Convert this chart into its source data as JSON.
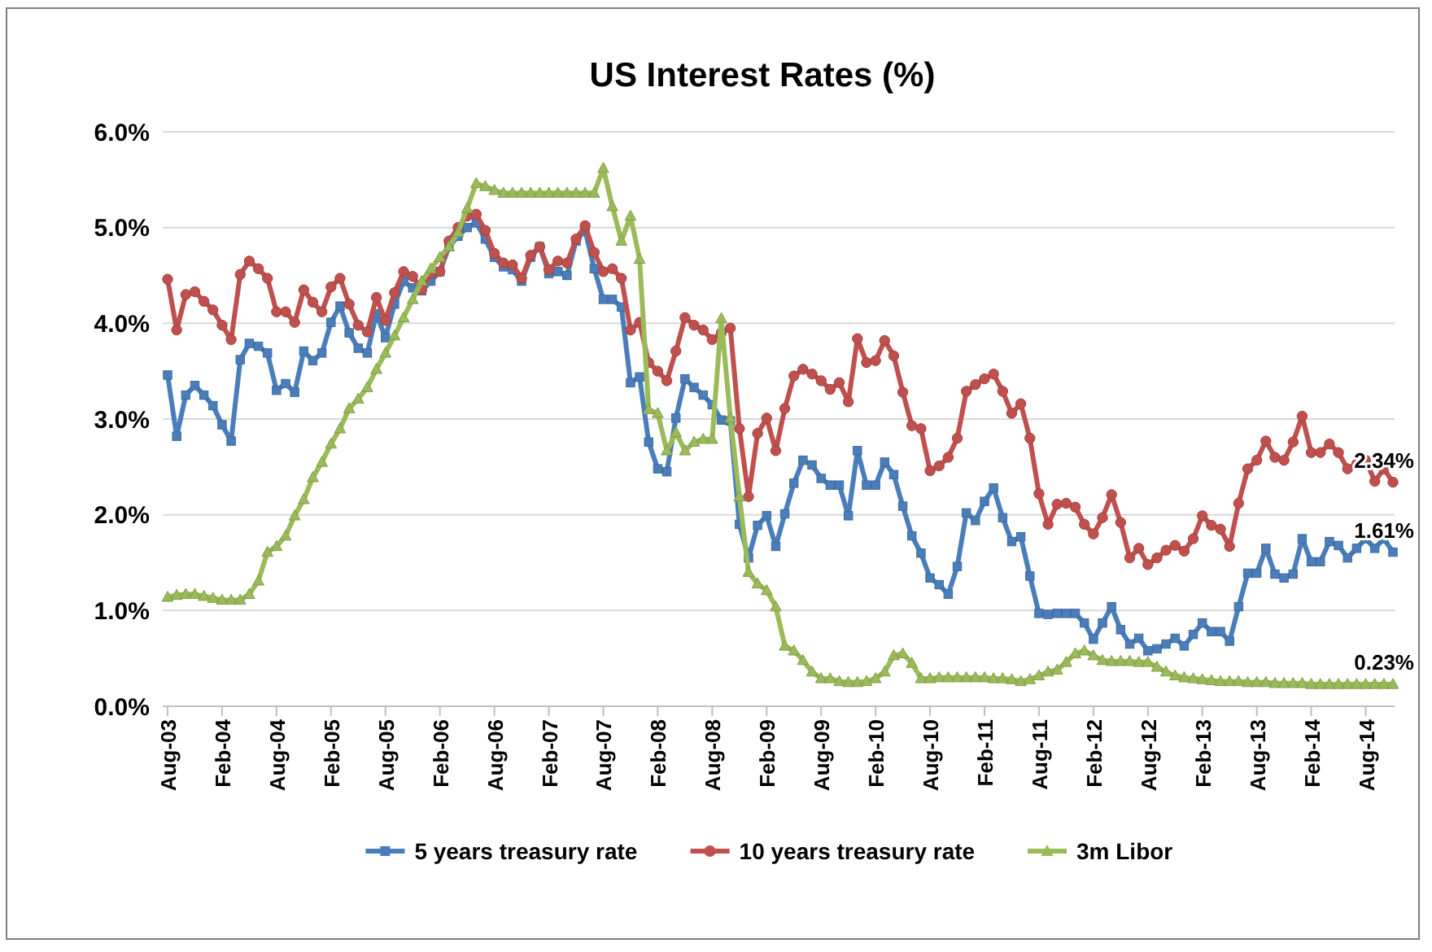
{
  "chart_data": {
    "type": "line",
    "title": "US Interest Rates (%)",
    "categories": [
      "Aug-03",
      null,
      null,
      null,
      null,
      null,
      "Feb-04",
      null,
      null,
      null,
      null,
      null,
      "Aug-04",
      null,
      null,
      null,
      null,
      null,
      "Feb-05",
      null,
      null,
      null,
      null,
      null,
      "Aug-05",
      null,
      null,
      null,
      null,
      null,
      "Feb-06",
      null,
      null,
      null,
      null,
      null,
      "Aug-06",
      null,
      null,
      null,
      null,
      null,
      "Feb-07",
      null,
      null,
      null,
      null,
      null,
      "Aug-07",
      null,
      null,
      null,
      null,
      null,
      "Feb-08",
      null,
      null,
      null,
      null,
      null,
      "Aug-08",
      null,
      null,
      null,
      null,
      null,
      "Feb-09",
      null,
      null,
      null,
      null,
      null,
      "Aug-09",
      null,
      null,
      null,
      null,
      null,
      "Feb-10",
      null,
      null,
      null,
      null,
      null,
      "Aug-10",
      null,
      null,
      null,
      null,
      null,
      "Feb-11",
      null,
      null,
      null,
      null,
      null,
      "Aug-11",
      null,
      null,
      null,
      null,
      null,
      "Feb-12",
      null,
      null,
      null,
      null,
      null,
      "Aug-12",
      null,
      null,
      null,
      null,
      null,
      "Feb-13",
      null,
      null,
      null,
      null,
      null,
      "Aug-13",
      null,
      null,
      null,
      null,
      null,
      "Feb-14",
      null,
      null,
      null,
      null,
      null,
      "Aug-14",
      null,
      null,
      null
    ],
    "ylim": [
      0,
      6
    ],
    "yticks": [
      {
        "value": 0,
        "label": "0.0%"
      },
      {
        "value": 1,
        "label": "1.0%"
      },
      {
        "value": 2,
        "label": "2.0%"
      },
      {
        "value": 3,
        "label": "3.0%"
      },
      {
        "value": 4,
        "label": "4.0%"
      },
      {
        "value": 5,
        "label": "5.0%"
      },
      {
        "value": 6,
        "label": "6.0%"
      }
    ],
    "grid": "y",
    "legend": "bottom",
    "series": [
      {
        "name": "5 years treasury rate",
        "color": "#4a7ebb",
        "marker": "square",
        "values": [
          3.46,
          2.82,
          3.25,
          3.35,
          3.25,
          3.14,
          2.94,
          2.77,
          3.62,
          3.79,
          3.76,
          3.69,
          3.3,
          3.37,
          3.28,
          3.71,
          3.61,
          3.69,
          4.01,
          4.18,
          3.9,
          3.74,
          3.69,
          4.1,
          3.85,
          4.2,
          4.44,
          4.37,
          4.34,
          4.44,
          4.54,
          4.8,
          4.91,
          5.0,
          5.05,
          4.88,
          4.69,
          4.59,
          4.56,
          4.44,
          4.69,
          4.8,
          4.52,
          4.54,
          4.5,
          4.86,
          4.97,
          4.57,
          4.25,
          4.25,
          4.17,
          3.38,
          3.44,
          2.76,
          2.48,
          2.45,
          3.01,
          3.42,
          3.33,
          3.25,
          3.15,
          2.99,
          2.98,
          1.9,
          1.55,
          1.89,
          1.99,
          1.67,
          2.01,
          2.33,
          2.57,
          2.52,
          2.38,
          2.31,
          2.31,
          1.99,
          2.67,
          2.31,
          2.31,
          2.55,
          2.42,
          2.09,
          1.78,
          1.6,
          1.34,
          1.27,
          1.17,
          1.46,
          2.02,
          1.94,
          2.14,
          2.28,
          1.97,
          1.72,
          1.77,
          1.36,
          0.97,
          0.96,
          0.97,
          0.97,
          0.97,
          0.87,
          0.7,
          0.87,
          1.04,
          0.8,
          0.65,
          0.71,
          0.58,
          0.6,
          0.65,
          0.71,
          0.63,
          0.75,
          0.87,
          0.78,
          0.78,
          0.68,
          1.04,
          1.39,
          1.39,
          1.65,
          1.38,
          1.34,
          1.38,
          1.75,
          1.51,
          1.51,
          1.72,
          1.68,
          1.55,
          1.65,
          1.75,
          1.65,
          1.75,
          1.61
        ],
        "value_labels": [
          null,
          null,
          null,
          null,
          null,
          null,
          null,
          null,
          null,
          null,
          null,
          null,
          null,
          null,
          null,
          null,
          null,
          null,
          null,
          null,
          null,
          null,
          null,
          null,
          null,
          null,
          null,
          null,
          null,
          null,
          null,
          null,
          null,
          null,
          null,
          null,
          null,
          null,
          null,
          null,
          null,
          null,
          null,
          null,
          null,
          null,
          null,
          null,
          null,
          null,
          null,
          null,
          null,
          null,
          null,
          null,
          null,
          null,
          null,
          null,
          null,
          null,
          null,
          null,
          null,
          null,
          null,
          null,
          null,
          null,
          null,
          null,
          null,
          null,
          null,
          null,
          null,
          null,
          null,
          null,
          null,
          null,
          null,
          null,
          null,
          null,
          null,
          null,
          null,
          null,
          null,
          null,
          null,
          null,
          null,
          null,
          null,
          null,
          null,
          null,
          null,
          null,
          null,
          null,
          null,
          null,
          null,
          null,
          null,
          null,
          null,
          null,
          null,
          null,
          null,
          null,
          null,
          null,
          null,
          null,
          null,
          null,
          null,
          null,
          null,
          null,
          null,
          null,
          null,
          null,
          null,
          null,
          null,
          null,
          null,
          "1.61%"
        ]
      },
      {
        "name": "10 years treasury rate",
        "color": "#c0504d",
        "marker": "circle",
        "values": [
          4.46,
          3.93,
          4.3,
          4.33,
          4.23,
          4.14,
          3.98,
          3.83,
          4.51,
          4.65,
          4.57,
          4.47,
          4.12,
          4.12,
          4.01,
          4.35,
          4.22,
          4.12,
          4.38,
          4.47,
          4.2,
          3.98,
          3.91,
          4.27,
          4.03,
          4.32,
          4.54,
          4.49,
          4.35,
          4.52,
          4.54,
          4.86,
          5.0,
          5.12,
          5.14,
          4.97,
          4.73,
          4.63,
          4.61,
          4.47,
          4.71,
          4.8,
          4.56,
          4.65,
          4.63,
          4.88,
          5.02,
          4.74,
          4.54,
          4.57,
          4.47,
          3.93,
          4.01,
          3.59,
          3.5,
          3.4,
          3.71,
          4.06,
          3.98,
          3.93,
          3.83,
          3.9,
          3.95,
          2.9,
          2.19,
          2.85,
          3.01,
          2.67,
          3.11,
          3.45,
          3.52,
          3.47,
          3.4,
          3.31,
          3.38,
          3.18,
          3.84,
          3.59,
          3.61,
          3.82,
          3.66,
          3.28,
          2.93,
          2.9,
          2.46,
          2.51,
          2.6,
          2.8,
          3.29,
          3.36,
          3.42,
          3.47,
          3.29,
          3.06,
          3.16,
          2.8,
          2.22,
          1.9,
          2.11,
          2.12,
          2.08,
          1.9,
          1.8,
          1.97,
          2.21,
          1.92,
          1.55,
          1.65,
          1.48,
          1.55,
          1.63,
          1.68,
          1.62,
          1.75,
          1.99,
          1.89,
          1.85,
          1.67,
          2.12,
          2.48,
          2.57,
          2.77,
          2.6,
          2.57,
          2.76,
          3.03,
          2.65,
          2.65,
          2.74,
          2.65,
          2.48,
          2.53,
          2.57,
          2.35,
          2.48,
          2.34
        ],
        "value_labels": [
          null,
          null,
          null,
          null,
          null,
          null,
          null,
          null,
          null,
          null,
          null,
          null,
          null,
          null,
          null,
          null,
          null,
          null,
          null,
          null,
          null,
          null,
          null,
          null,
          null,
          null,
          null,
          null,
          null,
          null,
          null,
          null,
          null,
          null,
          null,
          null,
          null,
          null,
          null,
          null,
          null,
          null,
          null,
          null,
          null,
          null,
          null,
          null,
          null,
          null,
          null,
          null,
          null,
          null,
          null,
          null,
          null,
          null,
          null,
          null,
          null,
          null,
          null,
          null,
          null,
          null,
          null,
          null,
          null,
          null,
          null,
          null,
          null,
          null,
          null,
          null,
          null,
          null,
          null,
          null,
          null,
          null,
          null,
          null,
          null,
          null,
          null,
          null,
          null,
          null,
          null,
          null,
          null,
          null,
          null,
          null,
          null,
          null,
          null,
          null,
          null,
          null,
          null,
          null,
          null,
          null,
          null,
          null,
          null,
          null,
          null,
          null,
          null,
          null,
          null,
          null,
          null,
          null,
          null,
          null,
          null,
          null,
          null,
          null,
          null,
          null,
          null,
          null,
          null,
          null,
          null,
          null,
          null,
          null,
          null,
          "2.34%"
        ]
      },
      {
        "name": "3m Libor",
        "color": "#9bbb59",
        "marker": "triangle",
        "values": [
          1.14,
          1.16,
          1.17,
          1.17,
          1.15,
          1.13,
          1.11,
          1.11,
          1.11,
          1.17,
          1.31,
          1.61,
          1.67,
          1.78,
          1.99,
          2.16,
          2.39,
          2.55,
          2.74,
          2.9,
          3.11,
          3.21,
          3.33,
          3.52,
          3.69,
          3.87,
          4.06,
          4.25,
          4.44,
          4.57,
          4.69,
          4.8,
          4.95,
          5.2,
          5.46,
          5.43,
          5.39,
          5.36,
          5.36,
          5.36,
          5.36,
          5.36,
          5.36,
          5.36,
          5.36,
          5.36,
          5.36,
          5.36,
          5.62,
          5.22,
          4.86,
          5.12,
          4.67,
          3.1,
          3.06,
          2.67,
          2.86,
          2.67,
          2.76,
          2.79,
          2.79,
          4.05,
          3.01,
          2.19,
          1.4,
          1.28,
          1.21,
          1.04,
          0.63,
          0.58,
          0.48,
          0.36,
          0.29,
          0.29,
          0.26,
          0.25,
          0.25,
          0.26,
          0.29,
          0.36,
          0.53,
          0.55,
          0.45,
          0.29,
          0.29,
          0.3,
          0.3,
          0.3,
          0.3,
          0.3,
          0.3,
          0.29,
          0.29,
          0.28,
          0.26,
          0.28,
          0.32,
          0.36,
          0.38,
          0.46,
          0.55,
          0.58,
          0.53,
          0.48,
          0.47,
          0.47,
          0.47,
          0.46,
          0.46,
          0.41,
          0.36,
          0.32,
          0.3,
          0.29,
          0.28,
          0.27,
          0.26,
          0.26,
          0.26,
          0.25,
          0.25,
          0.25,
          0.24,
          0.24,
          0.24,
          0.24,
          0.23,
          0.23,
          0.23,
          0.23,
          0.23,
          0.23,
          0.23,
          0.23,
          0.23,
          0.23
        ],
        "value_labels": [
          null,
          null,
          null,
          null,
          null,
          null,
          null,
          null,
          null,
          null,
          null,
          null,
          null,
          null,
          null,
          null,
          null,
          null,
          null,
          null,
          null,
          null,
          null,
          null,
          null,
          null,
          null,
          null,
          null,
          null,
          null,
          null,
          null,
          null,
          null,
          null,
          null,
          null,
          null,
          null,
          null,
          null,
          null,
          null,
          null,
          null,
          null,
          null,
          null,
          null,
          null,
          null,
          null,
          null,
          null,
          null,
          null,
          null,
          null,
          null,
          null,
          null,
          null,
          null,
          null,
          null,
          null,
          null,
          null,
          null,
          null,
          null,
          null,
          null,
          null,
          null,
          null,
          null,
          null,
          null,
          null,
          null,
          null,
          null,
          null,
          null,
          null,
          null,
          null,
          null,
          null,
          null,
          null,
          null,
          null,
          null,
          null,
          null,
          null,
          null,
          null,
          null,
          null,
          null,
          null,
          null,
          null,
          null,
          null,
          null,
          null,
          null,
          null,
          null,
          null,
          null,
          null,
          null,
          null,
          null,
          null,
          null,
          null,
          null,
          null,
          null,
          null,
          null,
          null,
          null,
          null,
          null,
          null,
          null,
          null,
          "0.23%"
        ]
      }
    ]
  }
}
